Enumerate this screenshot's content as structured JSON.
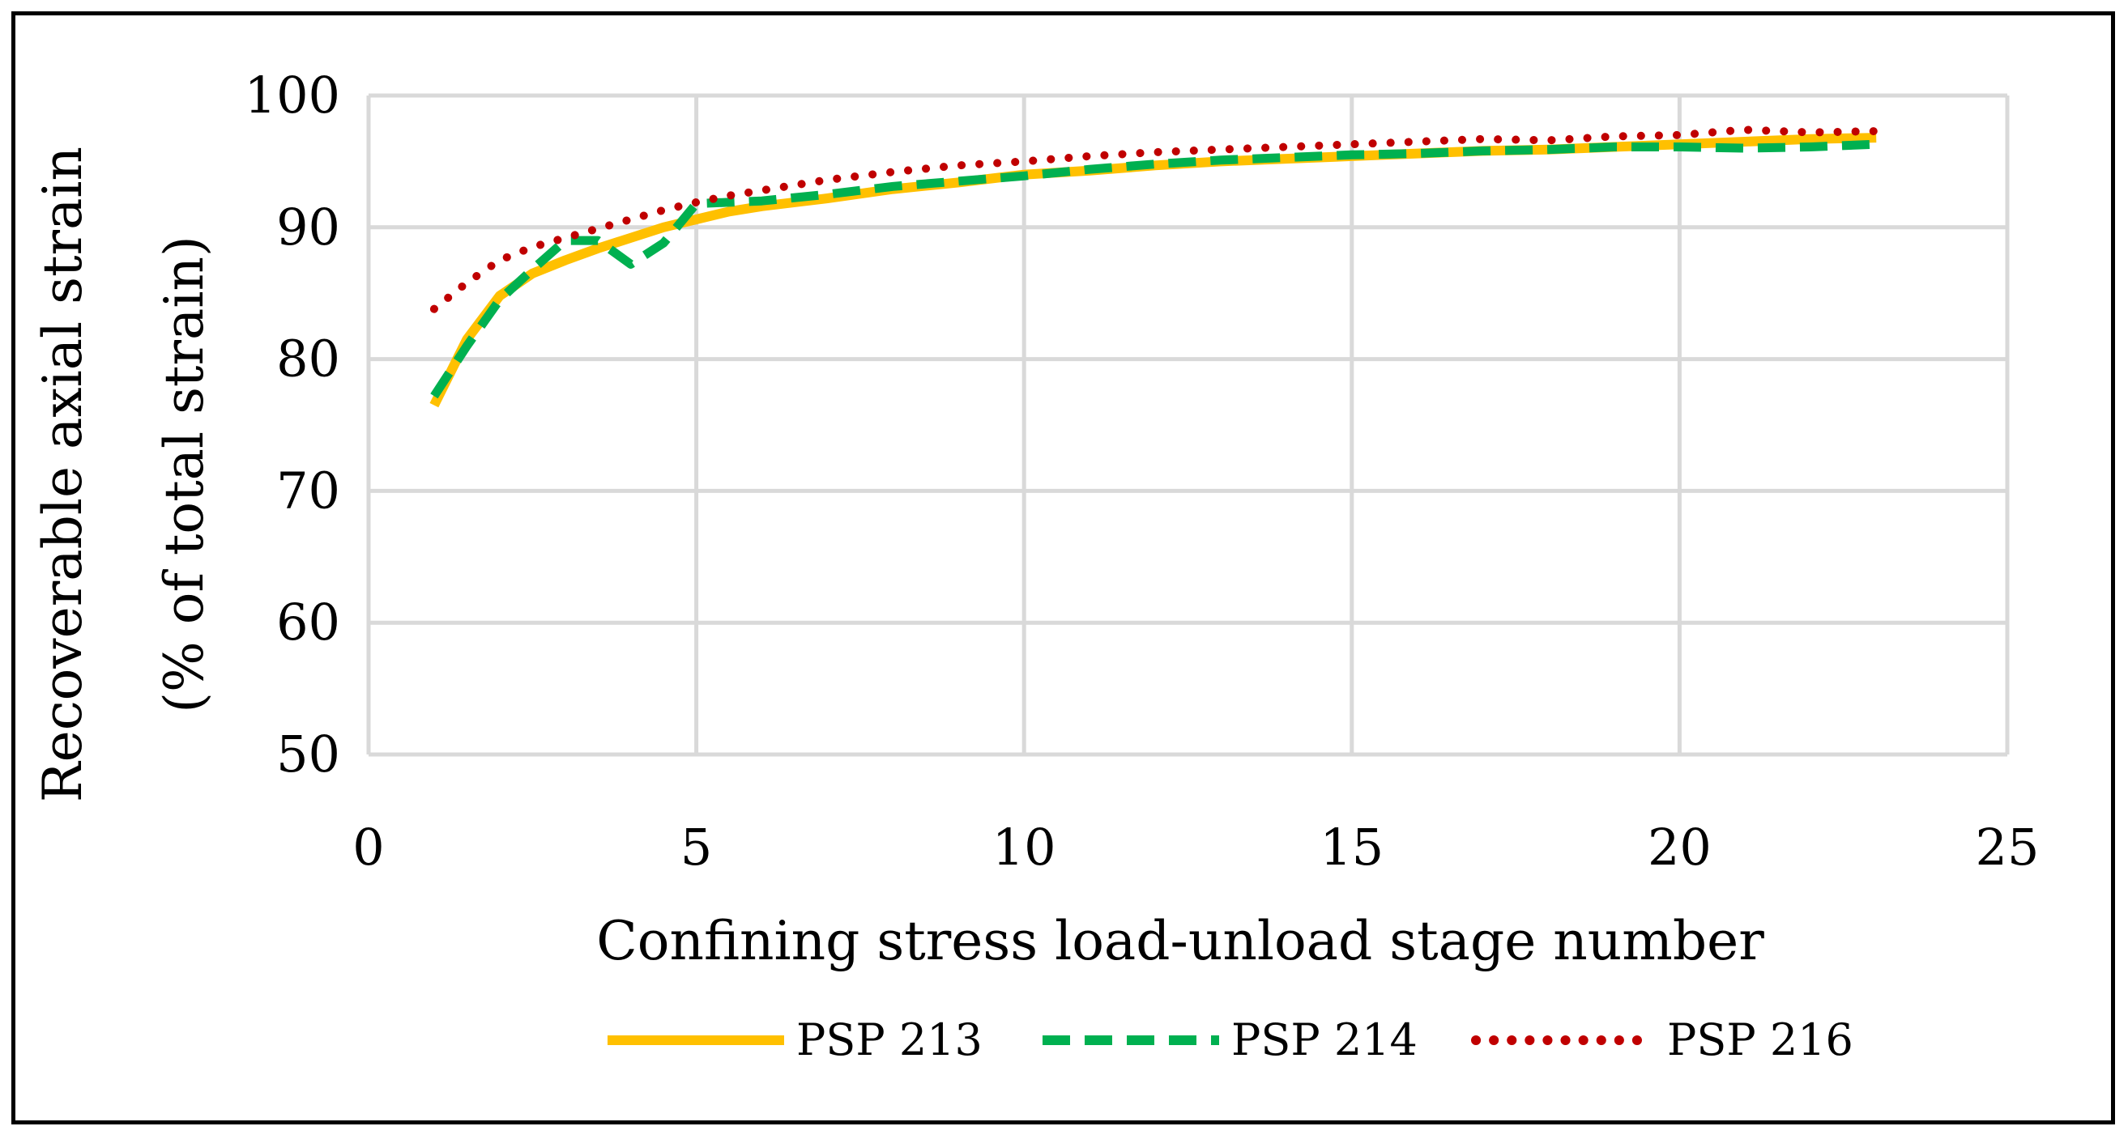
{
  "chart_data": {
    "type": "line",
    "title": "",
    "xlabel": "Confining stress load-unload stage number",
    "ylabel_lines": [
      "Recoverable axial strain",
      "(% of total strain)"
    ],
    "xlim": [
      0,
      25
    ],
    "ylim": [
      50,
      100
    ],
    "x_ticks": [
      0,
      5,
      10,
      15,
      20,
      25
    ],
    "y_ticks": [
      50,
      60,
      70,
      80,
      90,
      100
    ],
    "grid": true,
    "legend_position": "bottom",
    "series": [
      {
        "name": "PSP 213",
        "color": "#FFC000",
        "dash": "solid",
        "points": [
          [
            1,
            76.5
          ],
          [
            1.5,
            81.5
          ],
          [
            2,
            84.8
          ],
          [
            2.5,
            86.5
          ],
          [
            3,
            87.5
          ],
          [
            3.5,
            88.4
          ],
          [
            4,
            89.2
          ],
          [
            4.5,
            90.0
          ],
          [
            5,
            90.6
          ],
          [
            5.5,
            91.2
          ],
          [
            6,
            91.6
          ],
          [
            7,
            92.2
          ],
          [
            8,
            92.9
          ],
          [
            9,
            93.4
          ],
          [
            10,
            94.0
          ],
          [
            11,
            94.3
          ],
          [
            12,
            94.7
          ],
          [
            13,
            95.0
          ],
          [
            14,
            95.2
          ],
          [
            15,
            95.4
          ],
          [
            16,
            95.6
          ],
          [
            17,
            95.8
          ],
          [
            18,
            95.9
          ],
          [
            19,
            96.1
          ],
          [
            20,
            96.3
          ],
          [
            21,
            96.5
          ],
          [
            22,
            96.7
          ],
          [
            23,
            96.8
          ]
        ]
      },
      {
        "name": "PSP 214",
        "color": "#00B050",
        "dash": "dashed",
        "points": [
          [
            1,
            77.2
          ],
          [
            1.5,
            81.0
          ],
          [
            2,
            84.5
          ],
          [
            2.5,
            86.8
          ],
          [
            3,
            89.0
          ],
          [
            3.5,
            89.0
          ],
          [
            4,
            87.2
          ],
          [
            4.5,
            88.8
          ],
          [
            5,
            91.8
          ],
          [
            5.5,
            91.9
          ],
          [
            6,
            92.0
          ],
          [
            7,
            92.5
          ],
          [
            8,
            93.1
          ],
          [
            9,
            93.5
          ],
          [
            10,
            93.9
          ],
          [
            11,
            94.4
          ],
          [
            12,
            94.8
          ],
          [
            13,
            95.1
          ],
          [
            14,
            95.3
          ],
          [
            15,
            95.5
          ],
          [
            16,
            95.6
          ],
          [
            17,
            95.8
          ],
          [
            18,
            95.9
          ],
          [
            19,
            96.1
          ],
          [
            20,
            96.1
          ],
          [
            21,
            96.0
          ],
          [
            22,
            96.1
          ],
          [
            23,
            96.3
          ]
        ]
      },
      {
        "name": "PSP 216",
        "color": "#C00000",
        "dash": "dotted",
        "points": [
          [
            1,
            83.8
          ],
          [
            1.5,
            85.8
          ],
          [
            2,
            87.5
          ],
          [
            2.5,
            88.5
          ],
          [
            3,
            89.2
          ],
          [
            3.5,
            89.9
          ],
          [
            4,
            90.6
          ],
          [
            4.5,
            91.3
          ],
          [
            5,
            91.9
          ],
          [
            5.5,
            92.4
          ],
          [
            6,
            92.8
          ],
          [
            7,
            93.6
          ],
          [
            8,
            94.2
          ],
          [
            9,
            94.7
          ],
          [
            10,
            95.0
          ],
          [
            11,
            95.4
          ],
          [
            12,
            95.7
          ],
          [
            13,
            95.9
          ],
          [
            14,
            96.1
          ],
          [
            15,
            96.3
          ],
          [
            16,
            96.5
          ],
          [
            17,
            96.7
          ],
          [
            18,
            96.6
          ],
          [
            19,
            96.9
          ],
          [
            20,
            97.0
          ],
          [
            21,
            97.4
          ],
          [
            22,
            97.2
          ],
          [
            23,
            97.3
          ]
        ]
      }
    ]
  }
}
